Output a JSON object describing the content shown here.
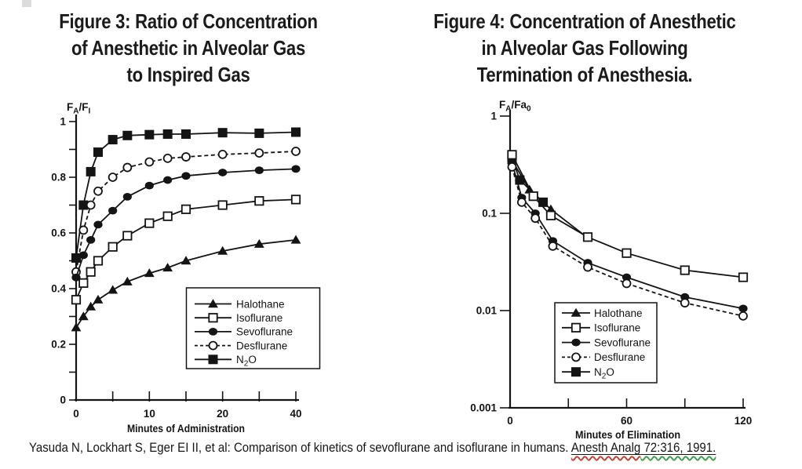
{
  "citation": {
    "prefix": "Yasuda N, Lockhart S, Eger EI II, et al: Comparison of kinetics of sevoflurane and isoflurane in humans. ",
    "link_spellcheck_part": "Anesth Analg",
    "link_grammar_part": " 72:316, 1991.",
    "spell_underline_color": "#c43f32",
    "grammar_underline_color": "#3a9e4c"
  },
  "chart_data": [
    {
      "id": "fig3",
      "type": "line",
      "title_lines": [
        "Figure 3: Ratio of Concentration",
        "of Anesthetic in Alveolar Gas",
        "to Inspired Gas"
      ],
      "ylabel": "F_A/F_I",
      "xlabel": "Minutes of Administration",
      "x_scale": "segmented-linear",
      "y_scale": "linear",
      "ylim": [
        0,
        1
      ],
      "xlim": [
        0,
        40
      ],
      "grid": false,
      "y_ticks": [
        0,
        0.1,
        0.2,
        0.3,
        0.4,
        0.5,
        0.6,
        0.7,
        0.8,
        0.9,
        1
      ],
      "y_tick_labels": [
        "0",
        "",
        "0.2",
        "",
        "0.4",
        "",
        "0.6",
        "",
        "0.8",
        "",
        "1"
      ],
      "x_ticks": [
        0,
        5,
        10,
        15,
        20,
        30,
        40
      ],
      "x_tick_labels": [
        "0",
        "",
        "10",
        "",
        "20",
        "",
        "40"
      ],
      "x": [
        0,
        1,
        2,
        3,
        5,
        7,
        10,
        12.5,
        15,
        20,
        30,
        40
      ],
      "series": [
        {
          "name": "Halothane",
          "marker": "triangle-filled",
          "line": "solid",
          "values": [
            0.26,
            0.3,
            0.335,
            0.36,
            0.395,
            0.425,
            0.455,
            0.475,
            0.5,
            0.535,
            0.56,
            0.575
          ]
        },
        {
          "name": "Isoflurane",
          "marker": "square-open",
          "line": "solid",
          "values": [
            0.36,
            0.42,
            0.46,
            0.5,
            0.55,
            0.59,
            0.635,
            0.66,
            0.685,
            0.7,
            0.715,
            0.72
          ]
        },
        {
          "name": "Sevoflurane",
          "marker": "circle-filled",
          "line": "solid",
          "values": [
            0.44,
            0.52,
            0.575,
            0.63,
            0.68,
            0.73,
            0.77,
            0.79,
            0.805,
            0.817,
            0.825,
            0.83
          ]
        },
        {
          "name": "Desflurane",
          "marker": "circle-open",
          "line": "dashed",
          "values": [
            0.46,
            0.61,
            0.7,
            0.75,
            0.8,
            0.835,
            0.855,
            0.868,
            0.873,
            0.882,
            0.887,
            0.893
          ]
        },
        {
          "name": "N_2O",
          "marker": "square-filled",
          "line": "solid",
          "values": [
            0.51,
            0.7,
            0.82,
            0.89,
            0.935,
            0.95,
            0.953,
            0.955,
            0.955,
            0.96,
            0.958,
            0.962
          ]
        }
      ],
      "legend": [
        "Halothane",
        "Isoflurane",
        "Sevoflurane",
        "Desflurane",
        "N_2O"
      ],
      "legend_position": "lower right"
    },
    {
      "id": "fig4",
      "type": "line",
      "title_lines": [
        "Figure 4: Concentration of Anesthetic",
        "in Alveolar Gas Following",
        "Termination of Anesthesia."
      ],
      "ylabel": "F_A/Fa_0",
      "xlabel": "Minutes of Elimination",
      "x_scale": "linear",
      "y_scale": "log",
      "ylim": [
        0.001,
        1
      ],
      "xlim": [
        0,
        120
      ],
      "grid": false,
      "y_ticks": [
        1,
        0.1,
        0.01,
        0.001
      ],
      "y_tick_labels": [
        "1",
        "0.1",
        "0.01",
        "0.001"
      ],
      "x_ticks": [
        0,
        30,
        60,
        90,
        120
      ],
      "x_tick_labels": [
        "0",
        "",
        "60",
        "",
        "120"
      ],
      "series": [
        {
          "name": "Halothane",
          "marker": "triangle-filled",
          "line": "solid",
          "points": [
            [
              1,
              0.35
            ],
            [
              10,
              0.175
            ],
            [
              21,
              0.11
            ]
          ],
          "tail": [
            [
              38,
              0.06
            ]
          ]
        },
        {
          "name": "Isoflurane",
          "marker": "square-open",
          "line": "solid",
          "points": [
            [
              1,
              0.4
            ],
            [
              12,
              0.15
            ],
            [
              21,
              0.095
            ],
            [
              40,
              0.057
            ],
            [
              60,
              0.039
            ],
            [
              90,
              0.026
            ],
            [
              120,
              0.022
            ]
          ]
        },
        {
          "name": "Sevoflurane",
          "marker": "circle-filled",
          "line": "solid",
          "points": [
            [
              1,
              0.33
            ],
            [
              6,
              0.145
            ],
            [
              13,
              0.1
            ],
            [
              22,
              0.052
            ],
            [
              40,
              0.031
            ],
            [
              60,
              0.022
            ],
            [
              90,
              0.0138
            ],
            [
              120,
              0.0105
            ]
          ]
        },
        {
          "name": "Desflurane",
          "marker": "circle-open",
          "line": "dashed",
          "points": [
            [
              1,
              0.3
            ],
            [
              6,
              0.13
            ],
            [
              13,
              0.089
            ],
            [
              22,
              0.046
            ],
            [
              40,
              0.028
            ],
            [
              60,
              0.019
            ],
            [
              90,
              0.012
            ],
            [
              120,
              0.0088
            ]
          ]
        },
        {
          "name": "N_2O",
          "marker": "square-filled",
          "line": "solid",
          "points": [
            [
              1,
              0.37
            ],
            [
              5,
              0.22
            ],
            [
              17,
              0.13
            ]
          ]
        }
      ],
      "legend": [
        "Halothane",
        "Isoflurane",
        "Sevoflurane",
        "Desflurane",
        "N_2O"
      ],
      "legend_position": "lower right"
    }
  ]
}
